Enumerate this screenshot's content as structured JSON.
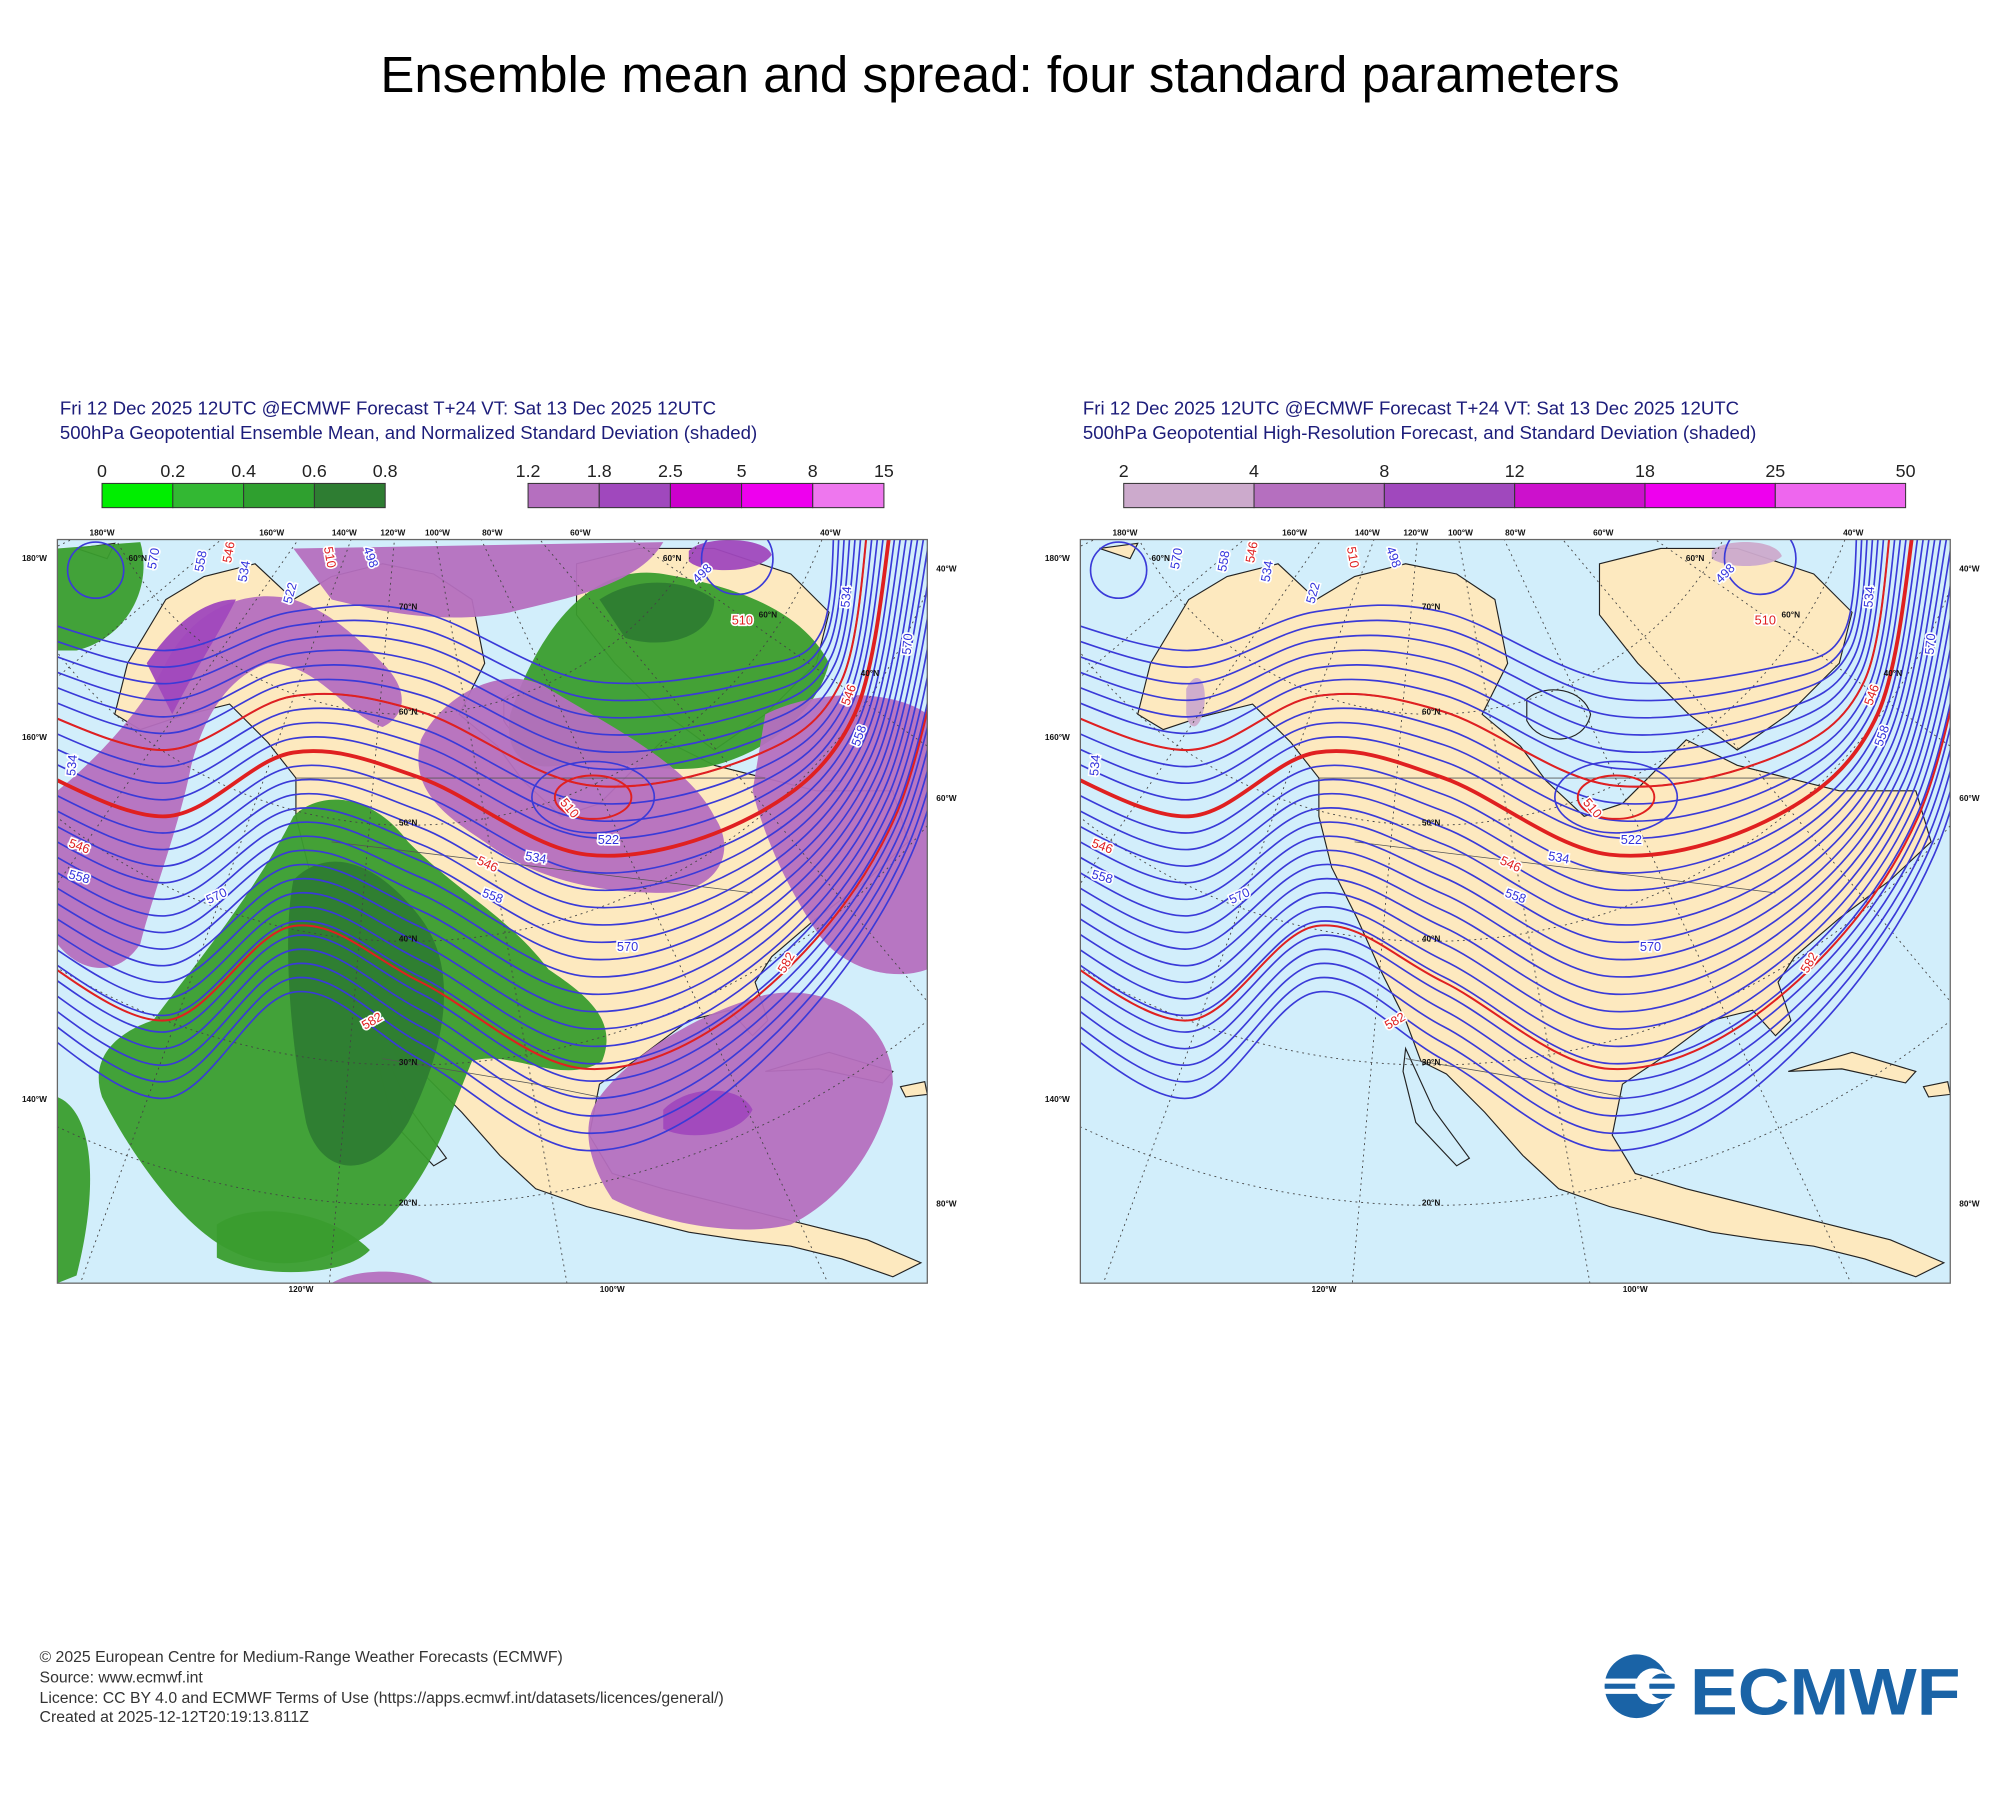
{
  "title": "Ensemble mean and spread: four standard parameters",
  "panels": [
    {
      "header": [
        "Fri 12 Dec 2025 12UTC @ECMWF Forecast T+24 VT: Sat 13 Dec 2025 12UTC",
        "500hPa Geopotential Ensemble Mean, and Normalized Standard Deviation (shaded)"
      ],
      "shaded": "normalized",
      "colorbars": [
        {
          "ticks": [
            0,
            0.2,
            0.4,
            0.6,
            0.8
          ],
          "colors": [
            "#00ee00",
            "#33b833",
            "#2fa02f",
            "#2e7d32"
          ]
        },
        {
          "ticks": [
            1.2,
            1.8,
            2.5,
            5,
            8,
            15
          ],
          "colors": [
            "#b56fbf",
            "#a048bd",
            "#cc00cc",
            "#ee00ee",
            "#ee77ee"
          ]
        }
      ],
      "lon_labels_top": [
        "180°W",
        "160°W",
        "140°W",
        "120°W",
        "100°W",
        "80°W",
        "60°W",
        "40°W"
      ],
      "lon_labels_left": [
        "180°W",
        "160°W",
        "140°W"
      ],
      "lon_labels_right": [
        "40°W",
        "60°W",
        "80°W"
      ],
      "lon_labels_bottom": [
        "120°W",
        "100°W"
      ],
      "lat_labels": [
        "60°N",
        "60°N",
        "70°N",
        "60°N",
        "60°N",
        "40°N",
        "50°N",
        "40°N",
        "30°N",
        "20°N"
      ],
      "contour_labels": [
        {
          "text": 570,
          "color": "#3333dd"
        },
        {
          "text": 558,
          "color": "#3333dd"
        },
        {
          "text": 546,
          "color": "#e02020"
        },
        {
          "text": 534,
          "color": "#3333dd"
        },
        {
          "text": 522,
          "color": "#3333dd"
        },
        {
          "text": 510,
          "color": "#e02020"
        },
        {
          "text": 498,
          "color": "#3333dd"
        },
        {
          "text": 534,
          "color": "#3333dd"
        },
        {
          "text": 546,
          "color": "#e02020"
        },
        {
          "text": 558,
          "color": "#3333dd"
        },
        {
          "text": 570,
          "color": "#3333dd"
        },
        {
          "text": 546,
          "color": "#e02020"
        },
        {
          "text": 534,
          "color": "#3333dd"
        },
        {
          "text": 558,
          "color": "#3333dd"
        },
        {
          "text": 522,
          "color": "#3333dd"
        },
        {
          "text": 510,
          "color": "#e02020"
        },
        {
          "text": 570,
          "color": "#3333dd"
        },
        {
          "text": 582,
          "color": "#e02020"
        },
        {
          "text": 582,
          "color": "#e02020"
        },
        {
          "text": 498,
          "color": "#3333dd"
        },
        {
          "text": 510,
          "color": "#e02020"
        },
        {
          "text": 534,
          "color": "#3333dd"
        },
        {
          "text": 570,
          "color": "#3333dd"
        },
        {
          "text": 546,
          "color": "#e02020"
        },
        {
          "text": 558,
          "color": "#3333dd"
        }
      ]
    },
    {
      "header": [
        "Fri 12 Dec 2025 12UTC @ECMWF Forecast T+24 VT: Sat 13 Dec 2025 12UTC",
        "500hPa Geopotential High-Resolution Forecast, and Standard Deviation (shaded)"
      ],
      "shaded": "spread",
      "colorbars": [
        {
          "ticks": [
            2,
            4,
            8,
            12,
            18,
            25,
            50
          ],
          "colors": [
            "#ccaacc",
            "#b56fbf",
            "#a048bd",
            "#cc11cc",
            "#ee00ee",
            "#ee66ee"
          ]
        }
      ],
      "lon_labels_top": [
        "180°W",
        "160°W",
        "140°W",
        "120°W",
        "100°W",
        "80°W",
        "60°W",
        "40°W"
      ],
      "lon_labels_left": [
        "180°W",
        "160°W",
        "140°W"
      ],
      "lon_labels_right": [
        "40°W",
        "60°W",
        "80°W"
      ],
      "lon_labels_bottom": [
        "120°W",
        "100°W"
      ],
      "lat_labels": [
        "60°N",
        "60°N",
        "70°N",
        "60°N",
        "60°N",
        "40°N",
        "50°N",
        "40°N",
        "30°N",
        "20°N"
      ],
      "contour_labels": [
        {
          "text": 570,
          "color": "#3333dd"
        },
        {
          "text": 558,
          "color": "#3333dd"
        },
        {
          "text": 546,
          "color": "#e02020"
        },
        {
          "text": 534,
          "color": "#3333dd"
        },
        {
          "text": 522,
          "color": "#3333dd"
        },
        {
          "text": 510,
          "color": "#e02020"
        },
        {
          "text": 498,
          "color": "#3333dd"
        },
        {
          "text": 534,
          "color": "#3333dd"
        },
        {
          "text": 546,
          "color": "#e02020"
        },
        {
          "text": 558,
          "color": "#3333dd"
        },
        {
          "text": 570,
          "color": "#3333dd"
        },
        {
          "text": 546,
          "color": "#e02020"
        },
        {
          "text": 534,
          "color": "#3333dd"
        },
        {
          "text": 558,
          "color": "#3333dd"
        },
        {
          "text": 522,
          "color": "#3333dd"
        },
        {
          "text": 510,
          "color": "#e02020"
        },
        {
          "text": 570,
          "color": "#3333dd"
        },
        {
          "text": 582,
          "color": "#e02020"
        },
        {
          "text": 582,
          "color": "#e02020"
        },
        {
          "text": 498,
          "color": "#3333dd"
        },
        {
          "text": 510,
          "color": "#e02020"
        },
        {
          "text": 534,
          "color": "#3333dd"
        },
        {
          "text": 570,
          "color": "#3333dd"
        },
        {
          "text": 546,
          "color": "#e02020"
        },
        {
          "text": 558,
          "color": "#3333dd"
        }
      ]
    }
  ],
  "footer": [
    "© 2025 European Centre for Medium-Range Weather Forecasts (ECMWF)",
    "Source: www.ecmwf.int",
    "Licence: CC BY 4.0 and ECMWF Terms of Use (https://apps.ecmwf.int/datasets/licences/general/)",
    "Created at 2025-12-12T20:19:13.811Z"
  ],
  "logo": "ECMWF"
}
